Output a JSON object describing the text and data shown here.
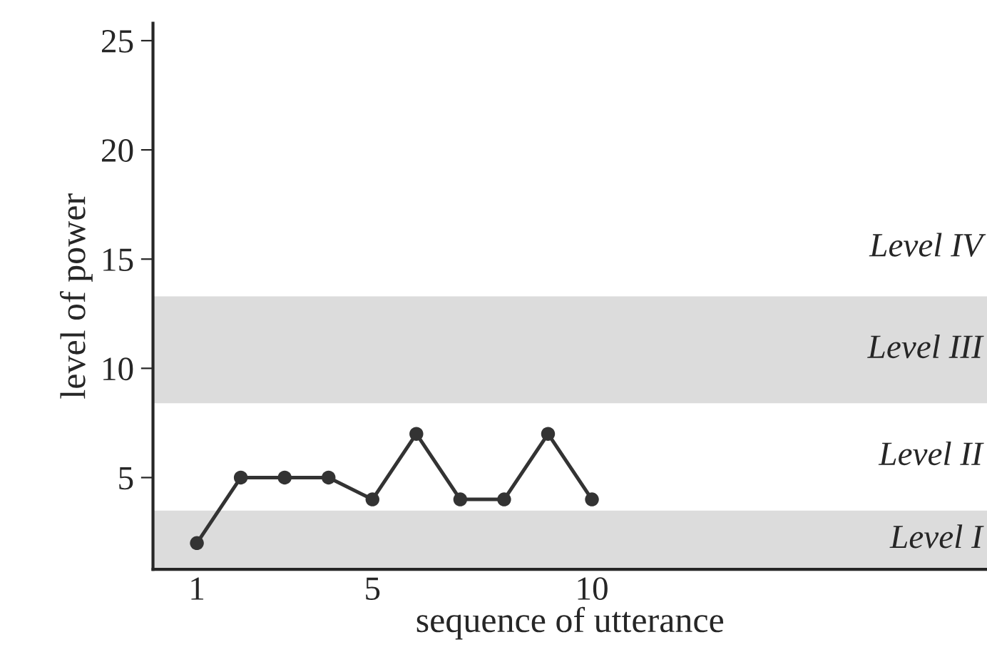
{
  "chart_data": {
    "type": "line",
    "xlabel": "sequence of utterance",
    "ylabel": "level of power",
    "x": [
      1,
      2,
      3,
      4,
      5,
      6,
      7,
      8,
      9,
      10
    ],
    "series": [
      {
        "color": "#333333",
        "values": [
          2,
          5,
          5,
          5,
          4,
          7,
          4,
          4,
          7,
          4
        ]
      }
    ],
    "xlim": [
      0,
      19
    ],
    "xticks": [
      1,
      5,
      10
    ],
    "ylim": [
      0.8,
      25.8
    ],
    "yticks": [
      5,
      10,
      15,
      20,
      25
    ],
    "bands": [
      {
        "axis": "y",
        "from": 0.8,
        "to": 3.5,
        "label": "Level I",
        "color": "#dcdcdc"
      },
      {
        "axis": "y",
        "from": 3.5,
        "to": 8.4,
        "label": "Level II",
        "color": "#ffffff"
      },
      {
        "axis": "y",
        "from": 8.4,
        "to": 13.3,
        "label": "Level III",
        "color": "#dcdcdc"
      },
      {
        "axis": "y",
        "from": 13.3,
        "to": 25.8,
        "label": "Level IV",
        "color": "#ffffff"
      }
    ],
    "marker": "circle",
    "line_style": "solid",
    "grid": false,
    "legend": false
  }
}
